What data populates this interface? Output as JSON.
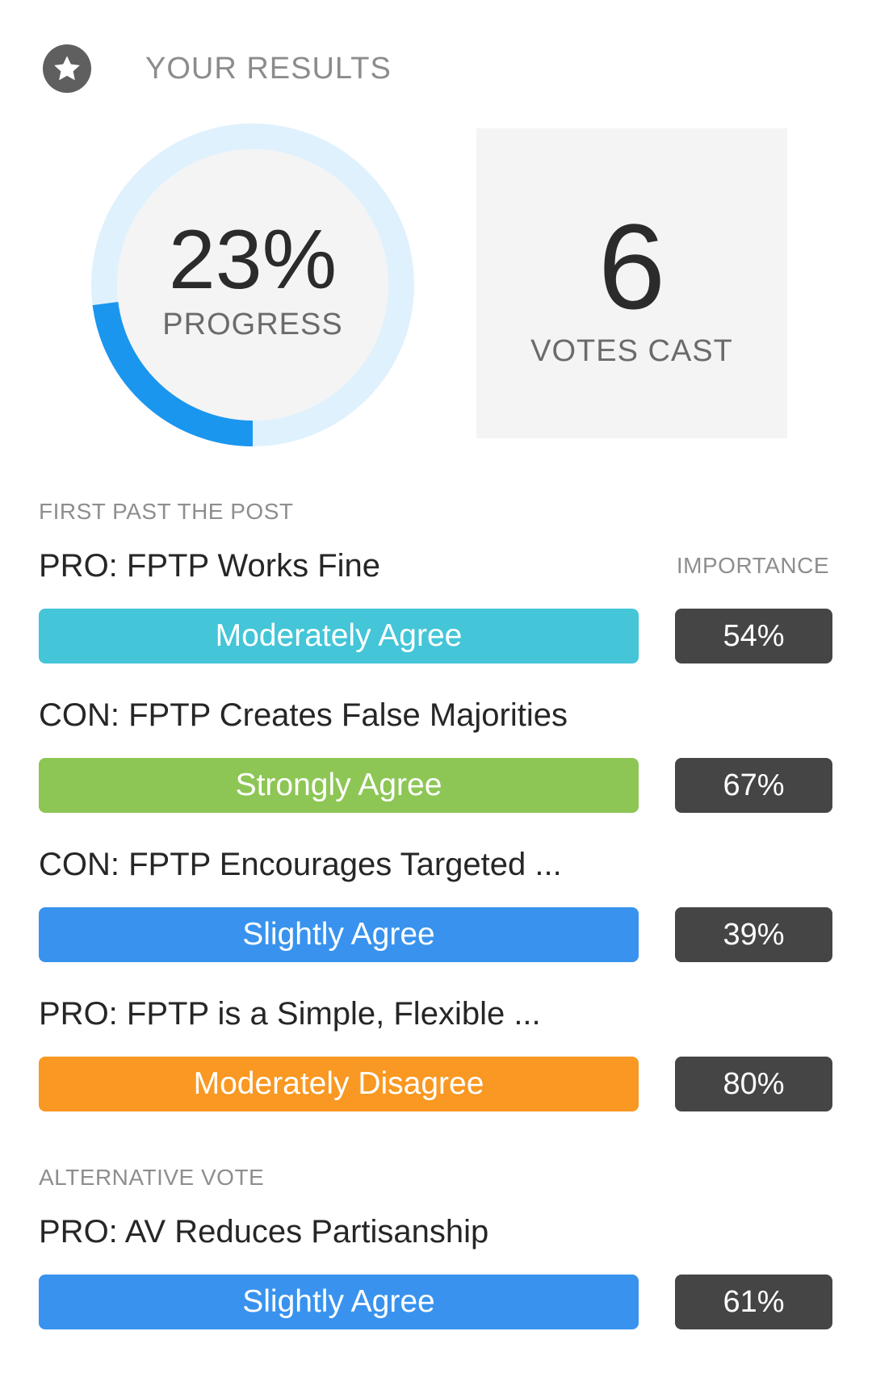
{
  "header": {
    "icon": "star-icon",
    "title": "YOUR RESULTS"
  },
  "progress": {
    "value_text": "23%",
    "fraction": 0.23,
    "label": "PROGRESS",
    "track_color": "#dff1fc",
    "fill_color": "#1a96ee",
    "inner_color": "#f4f4f4"
  },
  "votes": {
    "value": "6",
    "label": "VOTES CAST"
  },
  "importance_heading": "IMPORTANCE",
  "sections": [
    {
      "heading": "FIRST PAST THE POST",
      "statements": [
        {
          "title": "PRO: FPTP Works Fine",
          "opinion": "Moderately Agree",
          "color": "#44c5d8",
          "importance": "54%"
        },
        {
          "title": "CON: FPTP Creates False Majorities",
          "opinion": "Strongly Agree",
          "color": "#8dc655",
          "importance": "67%"
        },
        {
          "title": "CON: FPTP Encourages Targeted ...",
          "opinion": "Slightly Agree",
          "color": "#3993ee",
          "importance": "39%"
        },
        {
          "title": "PRO: FPTP is a Simple, Flexible ...",
          "opinion": "Moderately Disagree",
          "color": "#f99822",
          "importance": "80%"
        }
      ]
    },
    {
      "heading": "ALTERNATIVE VOTE",
      "statements": [
        {
          "title": "PRO: AV Reduces Partisanship",
          "opinion": "Slightly Agree",
          "color": "#3993ee",
          "importance": "61%"
        }
      ]
    }
  ]
}
